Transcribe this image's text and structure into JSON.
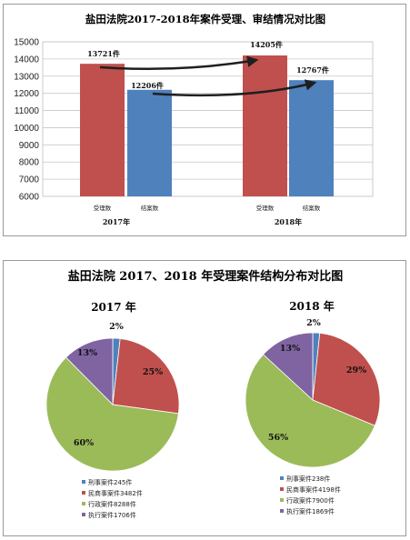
{
  "colors": {
    "red": "#c0504d",
    "blue": "#4f81bd",
    "green": "#9bbb59",
    "purple": "#8064a2",
    "arrow": "#1f1f1f"
  },
  "chart_data": [
    {
      "type": "bar",
      "title": "盐田法院2017-2018年案件受理、审结情况对比图",
      "groups": [
        "2017年",
        "2018年"
      ],
      "categories": [
        "受理数",
        "结案数"
      ],
      "series": [
        {
          "name": "受理数",
          "color": "red",
          "values": [
            13721,
            14205
          ],
          "labels": [
            "13721件",
            "14205件"
          ]
        },
        {
          "name": "结案数",
          "color": "blue",
          "values": [
            12206,
            12767
          ],
          "labels": [
            "12206件",
            "12767件"
          ]
        }
      ],
      "ylim": [
        6000,
        15000
      ],
      "yticks": [
        "6000",
        "7000",
        "8000",
        "9000",
        "10000",
        "11000",
        "12000",
        "13000",
        "14000",
        "15000"
      ],
      "grid": true,
      "arrows": "2017 to 2018 growth arrows"
    },
    {
      "type": "pie",
      "title": "盐田法院 2017、2018 年受理案件结构分布对比图",
      "charts": [
        {
          "subtitle": "2017 年",
          "slices": [
            {
              "name": "刑事案件",
              "value": 245,
              "color": "blue",
              "pct": "2%",
              "legend": "刑事案件245件"
            },
            {
              "name": "民商事案件",
              "value": 3482,
              "color": "red",
              "pct": "25%",
              "legend": "民商事案件3482件"
            },
            {
              "name": "行政案件",
              "value": 8288,
              "color": "green",
              "pct": "60%",
              "legend": "行政案件8288件"
            },
            {
              "name": "执行案件",
              "value": 1706,
              "color": "purple",
              "pct": "13%",
              "legend": "执行案件1706件"
            }
          ]
        },
        {
          "subtitle": "2018 年",
          "slices": [
            {
              "name": "刑事案件",
              "value": 238,
              "color": "blue",
              "pct": "2%",
              "legend": "刑事案件238件"
            },
            {
              "name": "民商事案件",
              "value": 4198,
              "color": "red",
              "pct": "29%",
              "legend": "民商事案件4198件"
            },
            {
              "name": "行政案件",
              "value": 7900,
              "color": "green",
              "pct": "56%",
              "legend": "行政案件7900件"
            },
            {
              "name": "执行案件",
              "value": 1869,
              "color": "purple",
              "pct": "13%",
              "legend": "执行案件1869件"
            }
          ]
        }
      ]
    }
  ]
}
